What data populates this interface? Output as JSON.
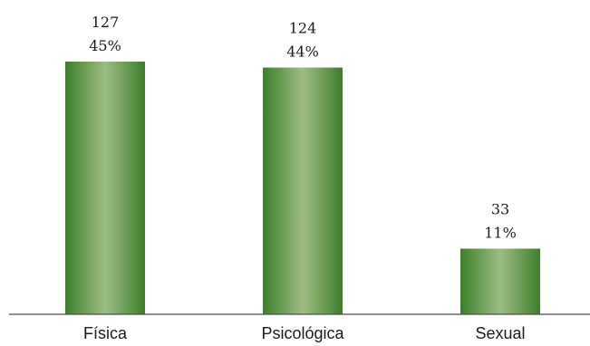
{
  "chart_data": {
    "type": "bar",
    "categories": [
      "Física",
      "Psicológica",
      "Sexual"
    ],
    "values": [
      127,
      124,
      33
    ],
    "percent_labels": [
      "45%",
      "44%",
      "11%"
    ],
    "count_labels": [
      "127",
      "124",
      "33"
    ],
    "title": "",
    "xlabel": "",
    "ylabel": "",
    "ylim": [
      0,
      132
    ],
    "grid": false,
    "legend": "none"
  },
  "colors": {
    "bar_dark": "#3d7f2a",
    "bar_light": "#9dbd85",
    "axis": "#4d4d4d"
  }
}
